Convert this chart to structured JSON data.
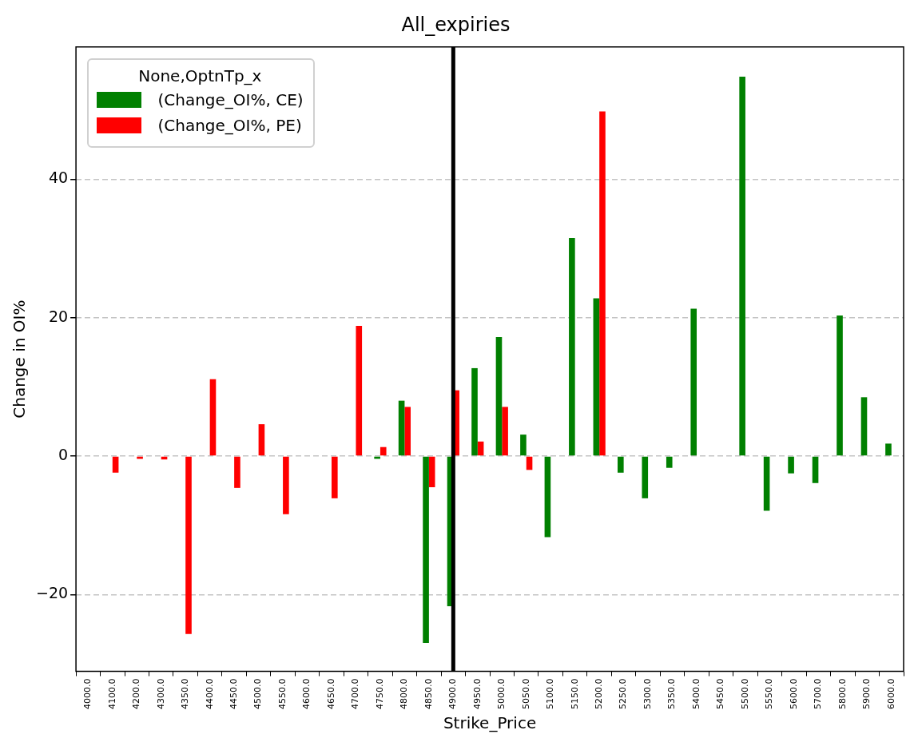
{
  "chart_data": {
    "type": "bar",
    "title": "All_expiries",
    "xlabel": "Strike_Price",
    "ylabel": "Change in OI%",
    "legend_title": "None,OptnTp_x",
    "categories": [
      "4000.0",
      "4100.0",
      "4200.0",
      "4300.0",
      "4350.0",
      "4400.0",
      "4450.0",
      "4500.0",
      "4550.0",
      "4600.0",
      "4650.0",
      "4700.0",
      "4750.0",
      "4800.0",
      "4850.0",
      "4900.0",
      "4950.0",
      "5000.0",
      "5050.0",
      "5100.0",
      "5150.0",
      "5200.0",
      "5250.0",
      "5300.0",
      "5350.0",
      "5400.0",
      "5450.0",
      "5500.0",
      "5550.0",
      "5600.0",
      "5700.0",
      "5800.0",
      "5900.0",
      "6000.0"
    ],
    "series": [
      {
        "name": " (Change_OI%, CE)",
        "color": "#008000",
        "values": [
          null,
          null,
          null,
          null,
          null,
          null,
          null,
          null,
          null,
          null,
          null,
          null,
          -0.4,
          8.0,
          -27.0,
          -21.7,
          12.7,
          17.2,
          3.1,
          -11.7,
          31.5,
          22.8,
          -2.4,
          -6.1,
          -1.7,
          21.3,
          null,
          54.8,
          -7.9,
          -2.5,
          -3.9,
          20.3,
          8.5,
          1.8
        ]
      },
      {
        "name": " (Change_OI%, PE)",
        "color": "#ff0000",
        "values": [
          null,
          -2.4,
          -0.4,
          -0.5,
          -25.7,
          11.1,
          -4.6,
          4.6,
          -8.4,
          null,
          -6.1,
          18.8,
          1.3,
          7.1,
          -4.5,
          9.5,
          2.1,
          7.1,
          -2.0,
          null,
          null,
          49.8,
          null,
          null,
          null,
          null,
          null,
          null,
          null,
          null,
          null,
          null,
          null,
          null
        ]
      }
    ],
    "ylim": [
      -31.1,
      59.1
    ],
    "yticks": [
      {
        "value": -20,
        "label": "−20"
      },
      0,
      20,
      40
    ],
    "grid": "y",
    "legend": "top left",
    "ref_lines": [
      {
        "axis": "x",
        "value": "4900.0",
        "color": "#000000"
      }
    ]
  }
}
